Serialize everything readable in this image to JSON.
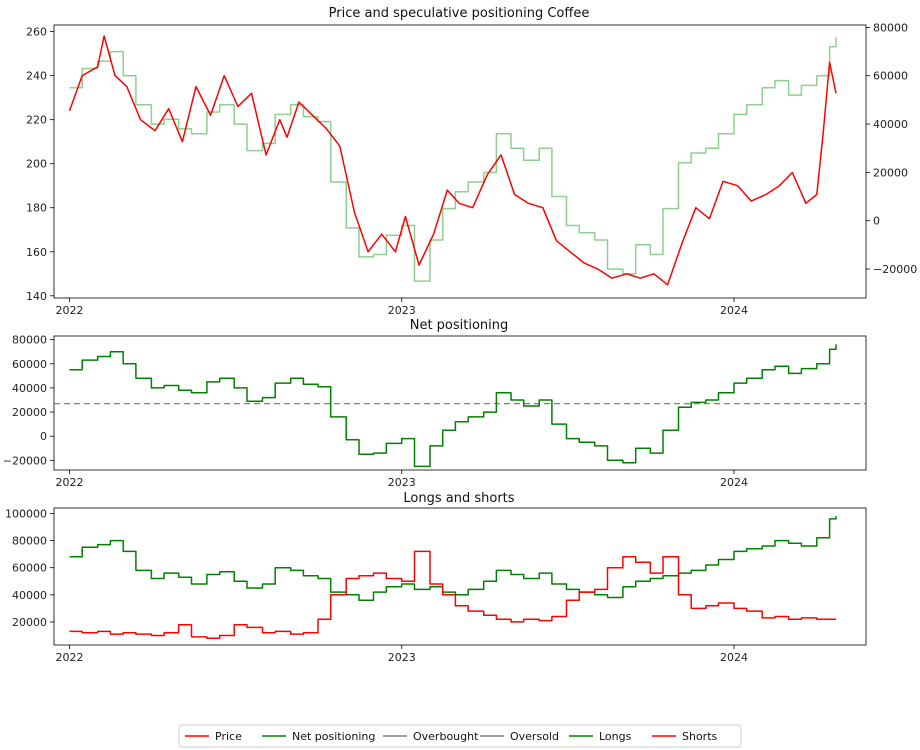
{
  "colors": {
    "price": "#ff0000",
    "net": "#008000",
    "net_light": "#8fcf8f",
    "overbought": "#808080",
    "oversold": "#808080",
    "longs": "#008000",
    "shorts": "#ff0000"
  },
  "legend": {
    "items": [
      {
        "label": "Price",
        "color": "#ff0000",
        "dashed": false
      },
      {
        "label": "Net positioning",
        "color": "#008000",
        "dashed": false
      },
      {
        "label": "Overbought",
        "color": "#808080",
        "dashed": false
      },
      {
        "label": "Oversold",
        "color": "#808080",
        "dashed": false
      },
      {
        "label": "Longs",
        "color": "#008000",
        "dashed": false
      },
      {
        "label": "Shorts",
        "color": "#ff0000",
        "dashed": false
      }
    ]
  },
  "chart_data": [
    {
      "type": "line",
      "title": "Price and speculative positioning Coffee",
      "xticks": [
        "2022",
        "2023",
        "2024"
      ],
      "xlim": [
        "2021-12-15",
        "2024-05-25"
      ],
      "ylim": [
        139,
        263
      ],
      "yticks": [
        140,
        160,
        180,
        200,
        220,
        240,
        260
      ],
      "y2lim": [
        -32000,
        81000
      ],
      "y2ticks": [
        -20000,
        0,
        20000,
        40000,
        60000,
        80000
      ],
      "series": [
        {
          "name": "Price",
          "axis": "left",
          "step": false,
          "x": [
            "2022-01-01",
            "2022-01-15",
            "2022-02-01",
            "2022-02-08",
            "2022-02-20",
            "2022-03-05",
            "2022-03-20",
            "2022-04-05",
            "2022-04-20",
            "2022-05-05",
            "2022-05-20",
            "2022-06-05",
            "2022-06-20",
            "2022-07-05",
            "2022-07-20",
            "2022-08-05",
            "2022-08-20",
            "2022-08-28",
            "2022-09-10",
            "2022-09-25",
            "2022-10-10",
            "2022-10-25",
            "2022-11-10",
            "2022-11-25",
            "2022-12-10",
            "2022-12-25",
            "2023-01-05",
            "2023-01-20",
            "2023-02-05",
            "2023-02-20",
            "2023-03-05",
            "2023-03-20",
            "2023-04-05",
            "2023-04-20",
            "2023-05-05",
            "2023-05-20",
            "2023-06-05",
            "2023-06-20",
            "2023-07-05",
            "2023-07-20",
            "2023-08-05",
            "2023-08-20",
            "2023-09-05",
            "2023-09-20",
            "2023-10-05",
            "2023-10-20",
            "2023-11-05",
            "2023-11-20",
            "2023-12-05",
            "2023-12-20",
            "2024-01-05",
            "2024-01-20",
            "2024-02-05",
            "2024-02-20",
            "2024-03-05",
            "2024-03-20",
            "2024-04-01",
            "2024-04-08",
            "2024-04-15",
            "2024-04-22"
          ],
          "values": [
            224,
            240,
            244,
            258,
            240,
            235,
            220,
            215,
            225,
            210,
            235,
            222,
            240,
            226,
            232,
            204,
            220,
            212,
            228,
            222,
            216,
            208,
            178,
            160,
            168,
            160,
            176,
            154,
            168,
            188,
            182,
            180,
            195,
            204,
            186,
            182,
            180,
            165,
            160,
            155,
            152,
            148,
            150,
            148,
            150,
            145,
            164,
            180,
            175,
            192,
            190,
            183,
            186,
            190,
            196,
            182,
            186,
            214,
            246,
            232
          ]
        },
        {
          "name": "Net positioning",
          "axis": "right",
          "step": true,
          "x": [
            "2022-01-01",
            "2022-01-15",
            "2022-02-01",
            "2022-02-15",
            "2022-03-01",
            "2022-03-15",
            "2022-04-01",
            "2022-04-15",
            "2022-05-01",
            "2022-05-15",
            "2022-06-01",
            "2022-06-15",
            "2022-07-01",
            "2022-07-15",
            "2022-08-01",
            "2022-08-15",
            "2022-09-01",
            "2022-09-15",
            "2022-10-01",
            "2022-10-15",
            "2022-11-01",
            "2022-11-15",
            "2022-12-01",
            "2022-12-15",
            "2023-01-01",
            "2023-01-15",
            "2023-02-01",
            "2023-02-15",
            "2023-03-01",
            "2023-03-15",
            "2023-04-01",
            "2023-04-15",
            "2023-05-01",
            "2023-05-15",
            "2023-06-01",
            "2023-06-15",
            "2023-07-01",
            "2023-07-15",
            "2023-08-01",
            "2023-08-15",
            "2023-09-01",
            "2023-09-15",
            "2023-10-01",
            "2023-10-15",
            "2023-11-01",
            "2023-11-15",
            "2023-12-01",
            "2023-12-15",
            "2024-01-01",
            "2024-01-15",
            "2024-02-01",
            "2024-02-15",
            "2024-03-01",
            "2024-03-15",
            "2024-04-01",
            "2024-04-15",
            "2024-04-22"
          ],
          "values": [
            55000,
            63000,
            66000,
            70000,
            60000,
            48000,
            40000,
            42000,
            38000,
            36000,
            45000,
            48000,
            40000,
            29000,
            32000,
            44000,
            48000,
            43000,
            41000,
            16000,
            -3000,
            -15000,
            -14000,
            -6000,
            -2000,
            -25000,
            -8000,
            5000,
            12000,
            16000,
            20000,
            36000,
            30000,
            25000,
            30000,
            10000,
            -2000,
            -5000,
            -8000,
            -20000,
            -22000,
            -10000,
            -14000,
            5000,
            24000,
            28000,
            30000,
            36000,
            44000,
            48000,
            55000,
            58000,
            52000,
            56000,
            60000,
            72000,
            76000
          ]
        }
      ]
    },
    {
      "type": "line",
      "title": "Net positioning",
      "xticks": [
        "2022",
        "2023",
        "2024"
      ],
      "xlim": [
        "2021-12-15",
        "2024-05-25"
      ],
      "ylim": [
        -28000,
        83000
      ],
      "yticks": [
        -20000,
        0,
        20000,
        40000,
        60000,
        80000
      ],
      "hline": 27000,
      "series": [
        {
          "name": "Net positioning",
          "step": true,
          "x": [
            "2022-01-01",
            "2022-01-15",
            "2022-02-01",
            "2022-02-15",
            "2022-03-01",
            "2022-03-15",
            "2022-04-01",
            "2022-04-15",
            "2022-05-01",
            "2022-05-15",
            "2022-06-01",
            "2022-06-15",
            "2022-07-01",
            "2022-07-15",
            "2022-08-01",
            "2022-08-15",
            "2022-09-01",
            "2022-09-15",
            "2022-10-01",
            "2022-10-15",
            "2022-11-01",
            "2022-11-15",
            "2022-12-01",
            "2022-12-15",
            "2023-01-01",
            "2023-01-15",
            "2023-02-01",
            "2023-02-15",
            "2023-03-01",
            "2023-03-15",
            "2023-04-01",
            "2023-04-15",
            "2023-05-01",
            "2023-05-15",
            "2023-06-01",
            "2023-06-15",
            "2023-07-01",
            "2023-07-15",
            "2023-08-01",
            "2023-08-15",
            "2023-09-01",
            "2023-09-15",
            "2023-10-01",
            "2023-10-15",
            "2023-11-01",
            "2023-11-15",
            "2023-12-01",
            "2023-12-15",
            "2024-01-01",
            "2024-01-15",
            "2024-02-01",
            "2024-02-15",
            "2024-03-01",
            "2024-03-15",
            "2024-04-01",
            "2024-04-15",
            "2024-04-22"
          ],
          "values": [
            55000,
            63000,
            66000,
            70000,
            60000,
            48000,
            40000,
            42000,
            38000,
            36000,
            45000,
            48000,
            40000,
            29000,
            32000,
            44000,
            48000,
            43000,
            41000,
            16000,
            -3000,
            -15000,
            -14000,
            -6000,
            -2000,
            -25000,
            -8000,
            5000,
            12000,
            16000,
            20000,
            36000,
            30000,
            25000,
            30000,
            10000,
            -2000,
            -5000,
            -8000,
            -20000,
            -22000,
            -10000,
            -14000,
            5000,
            24000,
            28000,
            30000,
            36000,
            44000,
            48000,
            55000,
            58000,
            52000,
            56000,
            60000,
            72000,
            76000
          ]
        }
      ]
    },
    {
      "type": "line",
      "title": "Longs and shorts",
      "xticks": [
        "2022",
        "2023",
        "2024"
      ],
      "xlim": [
        "2021-12-15",
        "2024-05-25"
      ],
      "ylim": [
        3000,
        104000
      ],
      "yticks": [
        20000,
        40000,
        60000,
        80000,
        100000
      ],
      "series": [
        {
          "name": "Longs",
          "step": true,
          "x": [
            "2022-01-01",
            "2022-01-15",
            "2022-02-01",
            "2022-02-15",
            "2022-03-01",
            "2022-03-15",
            "2022-04-01",
            "2022-04-15",
            "2022-05-01",
            "2022-05-15",
            "2022-06-01",
            "2022-06-15",
            "2022-07-01",
            "2022-07-15",
            "2022-08-01",
            "2022-08-15",
            "2022-09-01",
            "2022-09-15",
            "2022-10-01",
            "2022-10-15",
            "2022-11-01",
            "2022-11-15",
            "2022-12-01",
            "2022-12-15",
            "2023-01-01",
            "2023-01-15",
            "2023-02-01",
            "2023-02-15",
            "2023-03-01",
            "2023-03-15",
            "2023-04-01",
            "2023-04-15",
            "2023-05-01",
            "2023-05-15",
            "2023-06-01",
            "2023-06-15",
            "2023-07-01",
            "2023-07-15",
            "2023-08-01",
            "2023-08-15",
            "2023-09-01",
            "2023-09-15",
            "2023-10-01",
            "2023-10-15",
            "2023-11-01",
            "2023-11-15",
            "2023-12-01",
            "2023-12-15",
            "2024-01-01",
            "2024-01-15",
            "2024-02-01",
            "2024-02-15",
            "2024-03-01",
            "2024-03-15",
            "2024-04-01",
            "2024-04-15",
            "2024-04-22"
          ],
          "values": [
            68000,
            75000,
            77000,
            80000,
            72000,
            58000,
            52000,
            56000,
            53000,
            48000,
            55000,
            57000,
            50000,
            45000,
            48000,
            60000,
            58000,
            54000,
            52000,
            42000,
            40000,
            36000,
            42000,
            46000,
            48000,
            44000,
            46000,
            42000,
            40000,
            44000,
            50000,
            58000,
            55000,
            52000,
            56000,
            48000,
            44000,
            42000,
            40000,
            38000,
            46000,
            50000,
            52000,
            54000,
            56000,
            58000,
            62000,
            66000,
            72000,
            74000,
            76000,
            80000,
            78000,
            76000,
            82000,
            96000,
            98000
          ]
        },
        {
          "name": "Shorts",
          "step": true,
          "x": [
            "2022-01-01",
            "2022-01-15",
            "2022-02-01",
            "2022-02-15",
            "2022-03-01",
            "2022-03-15",
            "2022-04-01",
            "2022-04-15",
            "2022-05-01",
            "2022-05-15",
            "2022-06-01",
            "2022-06-15",
            "2022-07-01",
            "2022-07-15",
            "2022-08-01",
            "2022-08-15",
            "2022-09-01",
            "2022-09-15",
            "2022-10-01",
            "2022-10-15",
            "2022-11-01",
            "2022-11-15",
            "2022-12-01",
            "2022-12-15",
            "2023-01-01",
            "2023-01-15",
            "2023-02-01",
            "2023-02-15",
            "2023-03-01",
            "2023-03-15",
            "2023-04-01",
            "2023-04-15",
            "2023-05-01",
            "2023-05-15",
            "2023-06-01",
            "2023-06-15",
            "2023-07-01",
            "2023-07-15",
            "2023-08-01",
            "2023-08-15",
            "2023-09-01",
            "2023-09-15",
            "2023-10-01",
            "2023-10-15",
            "2023-11-01",
            "2023-11-15",
            "2023-12-01",
            "2023-12-15",
            "2024-01-01",
            "2024-01-15",
            "2024-02-01",
            "2024-02-15",
            "2024-03-01",
            "2024-03-15",
            "2024-04-01",
            "2024-04-15",
            "2024-04-22"
          ],
          "values": [
            13000,
            12000,
            13000,
            11000,
            12000,
            11000,
            10000,
            12000,
            18000,
            9000,
            8000,
            10000,
            18000,
            16000,
            12000,
            13000,
            11000,
            12000,
            22000,
            40000,
            52000,
            54000,
            56000,
            52000,
            50000,
            72000,
            48000,
            40000,
            32000,
            28000,
            25000,
            22000,
            20000,
            22000,
            21000,
            24000,
            36000,
            42000,
            44000,
            60000,
            68000,
            64000,
            56000,
            68000,
            40000,
            30000,
            32000,
            34000,
            30000,
            28000,
            23000,
            24000,
            22000,
            23000,
            22000,
            22000,
            22000
          ]
        }
      ]
    }
  ]
}
